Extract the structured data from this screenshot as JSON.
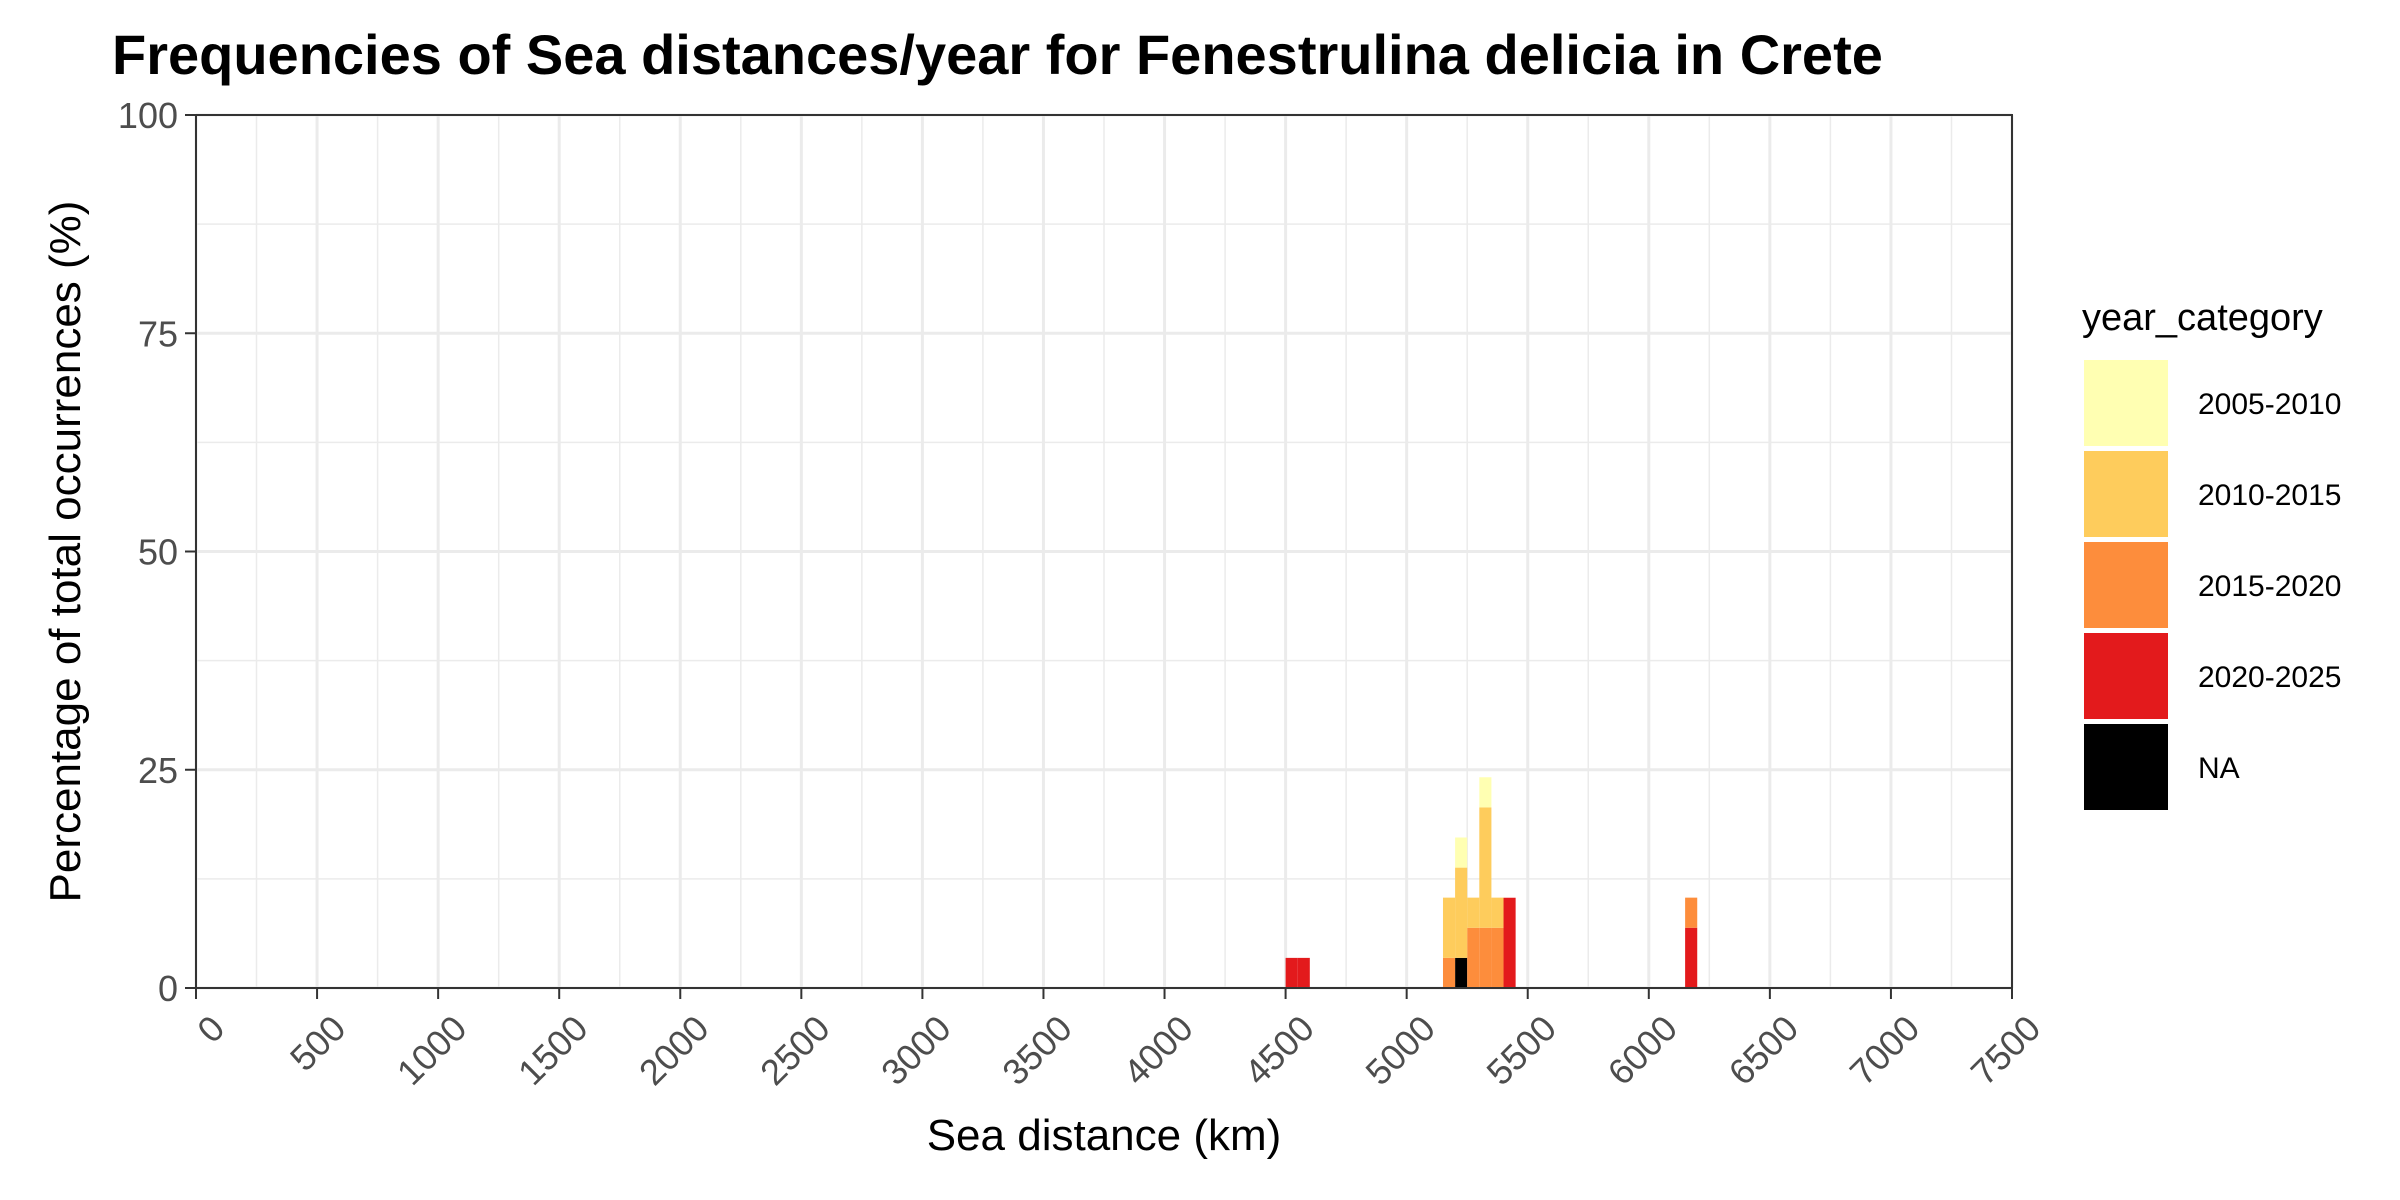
{
  "chart_data": {
    "type": "bar",
    "stacked": true,
    "title": "Frequencies of Sea distances/year for Fenestrulina delicia in Crete",
    "xlabel": "Sea distance (km)",
    "ylabel": "Percentage of total occurrences (%)",
    "xlim": [
      0,
      7500
    ],
    "ylim": [
      0,
      100
    ],
    "x_ticks": [
      0,
      500,
      1000,
      1500,
      2000,
      2500,
      3000,
      3500,
      4000,
      4500,
      5000,
      5500,
      6000,
      6500,
      7000,
      7500
    ],
    "y_ticks": [
      0,
      25,
      50,
      75,
      100
    ],
    "bin_width": 50,
    "grid": true,
    "legend": {
      "title": "year_category",
      "placement": "right",
      "entries": [
        {
          "label": "2005-2010",
          "color": "#FFFFB2"
        },
        {
          "label": "2010-2015",
          "color": "#FECC5C"
        },
        {
          "label": "2015-2020",
          "color": "#FD8D3C"
        },
        {
          "label": "2020-2025",
          "color": "#E31A1C"
        },
        {
          "label": "NA",
          "color": "#000000"
        }
      ]
    },
    "series": [
      {
        "name": "NA",
        "color": "#000000",
        "points": [
          {
            "x": 5225,
            "y": 3.45
          }
        ]
      },
      {
        "name": "2020-2025",
        "color": "#E31A1C",
        "points": [
          {
            "x": 4525,
            "y": 3.45
          },
          {
            "x": 4575,
            "y": 3.45
          },
          {
            "x": 5425,
            "y": 10.34
          },
          {
            "x": 6175,
            "y": 6.9
          }
        ]
      },
      {
        "name": "2015-2020",
        "color": "#FD8D3C",
        "points": [
          {
            "x": 5175,
            "y": 3.45
          },
          {
            "x": 5275,
            "y": 6.9
          },
          {
            "x": 5325,
            "y": 6.9
          },
          {
            "x": 5375,
            "y": 6.9
          },
          {
            "x": 6175,
            "y": 3.45
          }
        ]
      },
      {
        "name": "2010-2015",
        "color": "#FECC5C",
        "points": [
          {
            "x": 5175,
            "y": 6.9
          },
          {
            "x": 5225,
            "y": 10.34
          },
          {
            "x": 5275,
            "y": 3.45
          },
          {
            "x": 5325,
            "y": 13.79
          },
          {
            "x": 5375,
            "y": 3.45
          }
        ]
      },
      {
        "name": "2005-2010",
        "color": "#FFFFB2",
        "points": [
          {
            "x": 5225,
            "y": 3.45
          },
          {
            "x": 5325,
            "y": 3.45
          }
        ]
      }
    ]
  }
}
